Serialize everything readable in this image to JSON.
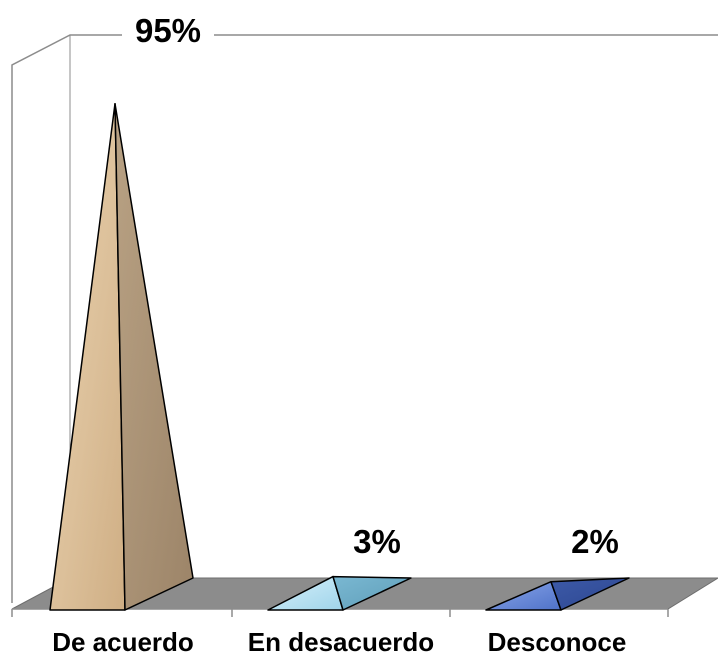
{
  "chart_data": {
    "type": "bar",
    "style": "3d-pyramid",
    "categories": [
      "De acuerdo",
      "En desacuerdo",
      "Desconoce"
    ],
    "values": [
      95,
      3,
      2
    ],
    "value_labels": [
      "95%",
      "3%",
      "2%"
    ],
    "unit": "%",
    "ylim": [
      0,
      100
    ],
    "grid": false,
    "legend": "none",
    "colors": [
      "#d9b98c",
      "#a6dcef",
      "#5b7fd3"
    ],
    "floor_color": "#8c8c8c"
  }
}
